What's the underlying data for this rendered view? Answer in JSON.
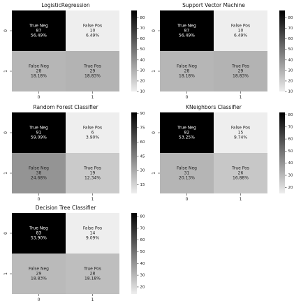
{
  "chart_data": [
    {
      "type": "heatmap",
      "title": "LogisticRegression",
      "row_tick_labels": [
        "0",
        "1"
      ],
      "col_tick_labels": [
        "0",
        "1"
      ],
      "cells": [
        [
          {
            "label": "True Neg",
            "count": "87",
            "percent": "56.49%",
            "value": 87
          },
          {
            "label": "False Pos",
            "count": "10",
            "percent": "6.49%",
            "value": 10
          }
        ],
        [
          {
            "label": "False Neg",
            "count": "28",
            "percent": "18.18%",
            "value": 28
          },
          {
            "label": "True Pos",
            "count": "29",
            "percent": "18.83%",
            "value": 29
          }
        ]
      ],
      "colorbar": {
        "min": 10,
        "max": 87,
        "ticks": [
          "10",
          "20",
          "30",
          "40",
          "50",
          "60",
          "70",
          "80"
        ]
      }
    },
    {
      "type": "heatmap",
      "title": "Support Vector Machine",
      "row_tick_labels": [
        "0",
        "1"
      ],
      "col_tick_labels": [
        "0",
        "1"
      ],
      "cells": [
        [
          {
            "label": "True Neg",
            "count": "87",
            "percent": "56.49%",
            "value": 87
          },
          {
            "label": "False Pos",
            "count": "10",
            "percent": "6.49%",
            "value": 10
          }
        ],
        [
          {
            "label": "False Neg",
            "count": "28",
            "percent": "18.18%",
            "value": 28
          },
          {
            "label": "True Pos",
            "count": "29",
            "percent": "18.83%",
            "value": 29
          }
        ]
      ],
      "colorbar": {
        "min": 10,
        "max": 87,
        "ticks": [
          "10",
          "20",
          "30",
          "40",
          "50",
          "60",
          "70",
          "80"
        ]
      }
    },
    {
      "type": "heatmap",
      "title": "Random Forest Classifier",
      "row_tick_labels": [
        "0",
        "1"
      ],
      "col_tick_labels": [
        "0",
        "1"
      ],
      "cells": [
        [
          {
            "label": "True Neg",
            "count": "91",
            "percent": "59.09%",
            "value": 91
          },
          {
            "label": "False Pos",
            "count": "6",
            "percent": "3.90%",
            "value": 6
          }
        ],
        [
          {
            "label": "False Neg",
            "count": "38",
            "percent": "24.68%",
            "value": 38
          },
          {
            "label": "True Pos",
            "count": "19",
            "percent": "12.34%",
            "value": 19
          }
        ]
      ],
      "colorbar": {
        "min": 6,
        "max": 91,
        "ticks": [
          "15",
          "30",
          "45",
          "60",
          "75",
          "90"
        ]
      }
    },
    {
      "type": "heatmap",
      "title": "KNeighbors Classifier",
      "row_tick_labels": [
        "0",
        "1"
      ],
      "col_tick_labels": [
        "0",
        "1"
      ],
      "cells": [
        [
          {
            "label": "True Neg",
            "count": "82",
            "percent": "53.25%",
            "value": 82
          },
          {
            "label": "False Pos",
            "count": "15",
            "percent": "9.74%",
            "value": 15
          }
        ],
        [
          {
            "label": "False Neg",
            "count": "31",
            "percent": "20.13%",
            "value": 31
          },
          {
            "label": "True Pos",
            "count": "26",
            "percent": "16.88%",
            "value": 26
          }
        ]
      ],
      "colorbar": {
        "min": 15,
        "max": 82,
        "ticks": [
          "20",
          "30",
          "40",
          "50",
          "60",
          "70",
          "80"
        ]
      }
    },
    {
      "type": "heatmap",
      "title": "Decision Tree Classifier",
      "row_tick_labels": [
        "0",
        "1"
      ],
      "col_tick_labels": [
        "0",
        "1"
      ],
      "cells": [
        [
          {
            "label": "True Neg",
            "count": "83",
            "percent": "53.90%",
            "value": 83
          },
          {
            "label": "False Pos",
            "count": "14",
            "percent": "9.09%",
            "value": 14
          }
        ],
        [
          {
            "label": "False Neg",
            "count": "29",
            "percent": "18.83%",
            "value": 29
          },
          {
            "label": "True Pos",
            "count": "28",
            "percent": "18.18%",
            "value": 28
          }
        ]
      ],
      "colorbar": {
        "min": 14,
        "max": 83,
        "ticks": [
          "20",
          "30",
          "40",
          "50",
          "60",
          "70",
          "80"
        ]
      }
    }
  ]
}
